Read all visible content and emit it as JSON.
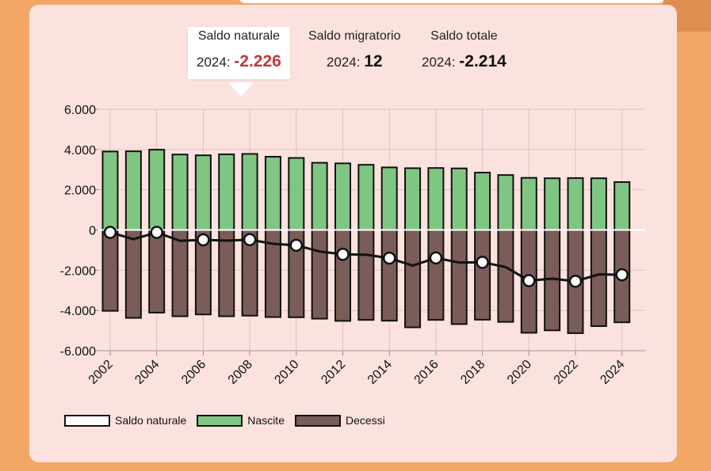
{
  "stats": {
    "natural": {
      "label": "Saldo naturale",
      "year": "2024:",
      "value": "-2.226"
    },
    "migratory": {
      "label": "Saldo migratorio",
      "year": "2024:",
      "value": "12"
    },
    "total": {
      "label": "Saldo totale",
      "year": "2024:",
      "value": "-2.214"
    }
  },
  "legend": [
    {
      "label": "Saldo naturale",
      "color": "#ffffff"
    },
    {
      "label": "Nascite",
      "color": "#80c683"
    },
    {
      "label": "Decessi",
      "color": "#7a5c58"
    }
  ],
  "chart_data": {
    "type": "bar",
    "categories": [
      "2002",
      "2003",
      "2004",
      "2005",
      "2006",
      "2007",
      "2008",
      "2009",
      "2010",
      "2011",
      "2012",
      "2013",
      "2014",
      "2015",
      "2016",
      "2017",
      "2018",
      "2019",
      "2020",
      "2021",
      "2022",
      "2023",
      "2024"
    ],
    "x_tick_labels": [
      "2002",
      "2004",
      "2006",
      "2008",
      "2010",
      "2012",
      "2014",
      "2016",
      "2018",
      "2020",
      "2022",
      "2024"
    ],
    "y_ticks": [
      6000,
      4000,
      2000,
      0,
      -2000,
      -4000,
      -6000
    ],
    "y_tick_labels": [
      "6.000",
      "4.000",
      "2.000",
      "0",
      "-2.000",
      "-4.000",
      "-6.000"
    ],
    "ylim": [
      -6000,
      6000
    ],
    "grid": true,
    "legend_position": "bottom-left",
    "series": [
      {
        "name": "Nascite",
        "type": "bar",
        "color": "#80c683",
        "values": [
          3900,
          3910,
          3990,
          3750,
          3710,
          3760,
          3780,
          3640,
          3580,
          3340,
          3310,
          3240,
          3110,
          3070,
          3080,
          3060,
          2850,
          2730,
          2590,
          2570,
          2580,
          2570,
          2380
        ]
      },
      {
        "name": "Decessi",
        "type": "bar",
        "color": "#7a5c58",
        "values": [
          -4020,
          -4370,
          -4110,
          -4290,
          -4200,
          -4290,
          -4260,
          -4330,
          -4340,
          -4410,
          -4520,
          -4470,
          -4510,
          -4840,
          -4470,
          -4680,
          -4460,
          -4570,
          -5110,
          -4990,
          -5130,
          -4780,
          -4590
        ]
      },
      {
        "name": "Saldo naturale",
        "type": "line",
        "color": "#111111",
        "values": [
          -120,
          -460,
          -120,
          -540,
          -490,
          -530,
          -480,
          -690,
          -760,
          -1070,
          -1210,
          -1230,
          -1400,
          -1770,
          -1390,
          -1620,
          -1610,
          -1840,
          -2520,
          -2420,
          -2550,
          -2210,
          -2226
        ]
      }
    ]
  }
}
